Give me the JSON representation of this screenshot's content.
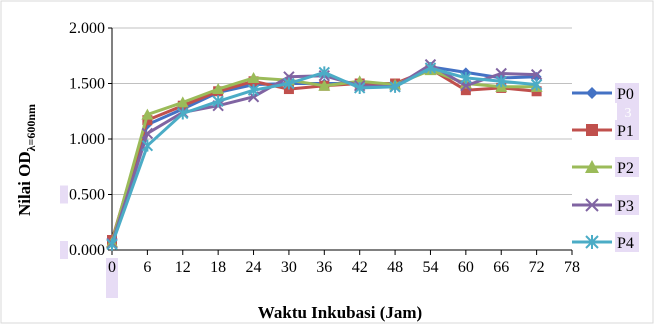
{
  "chart_data": {
    "type": "line",
    "xlabel": "Waktu Inkubasi (Jam)",
    "ylabel_main": "Nilai OD",
    "ylabel_sub": "λ=600nm",
    "x": [
      0,
      6,
      12,
      18,
      24,
      30,
      36,
      42,
      48,
      54,
      60,
      66,
      72
    ],
    "x_ticks": [
      "0",
      "6",
      "12",
      "18",
      "24",
      "30",
      "36",
      "42",
      "48",
      "54",
      "60",
      "66",
      "72",
      "78"
    ],
    "y_ticks": [
      "0.000",
      "0.500",
      "1.000",
      "1.500",
      "2.000"
    ],
    "xlim": [
      0,
      78
    ],
    "ylim": [
      0,
      2.0
    ],
    "grid": "horizontal",
    "legend_position": "right",
    "series": [
      {
        "name": "P0",
        "color": "#4472C4",
        "marker": "diamond",
        "values": [
          0.08,
          1.13,
          1.27,
          1.42,
          1.49,
          1.5,
          1.5,
          1.5,
          1.48,
          1.65,
          1.6,
          1.55,
          1.56
        ]
      },
      {
        "name": "P1",
        "color": "#C0504D",
        "marker": "square",
        "values": [
          0.09,
          1.17,
          1.3,
          1.43,
          1.52,
          1.45,
          1.48,
          1.5,
          1.5,
          1.63,
          1.44,
          1.46,
          1.43
        ]
      },
      {
        "name": "P2",
        "color": "#9BBB59",
        "marker": "triangle",
        "values": [
          0.07,
          1.22,
          1.33,
          1.45,
          1.55,
          1.53,
          1.48,
          1.52,
          1.49,
          1.62,
          1.5,
          1.47,
          1.47
        ]
      },
      {
        "name": "P3",
        "color": "#8064A2",
        "marker": "x",
        "values": [
          0.06,
          1.05,
          1.24,
          1.3,
          1.38,
          1.56,
          1.57,
          1.48,
          1.47,
          1.67,
          1.48,
          1.59,
          1.58
        ]
      },
      {
        "name": "P4",
        "color": "#4BACC6",
        "marker": "star",
        "values": [
          0.05,
          0.94,
          1.23,
          1.34,
          1.44,
          1.5,
          1.6,
          1.46,
          1.47,
          1.64,
          1.55,
          1.52,
          1.49
        ]
      }
    ]
  },
  "overlay": {
    "badge_text": "3"
  },
  "colors": {
    "plot_border": "#000000",
    "grid": "#c0c0c0",
    "highlight": "#e7dcf5"
  }
}
